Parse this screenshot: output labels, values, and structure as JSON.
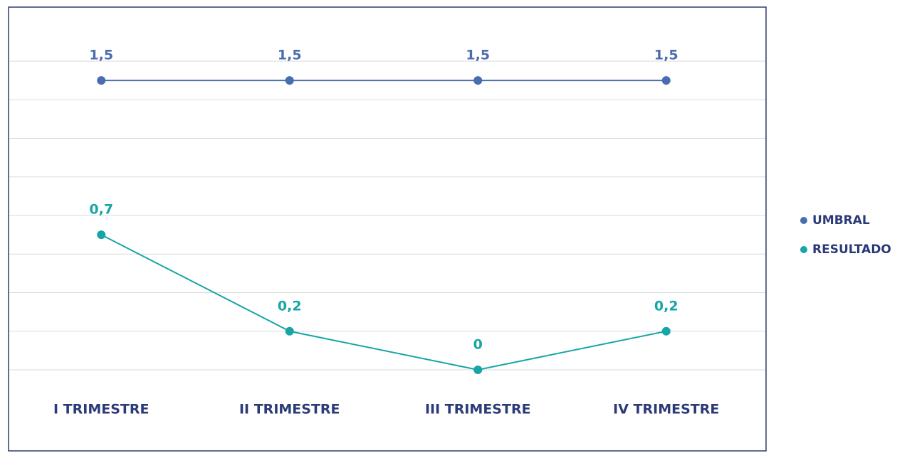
{
  "chart_data": {
    "type": "line",
    "categories": [
      "I TRIMESTRE",
      "II TRIMESTRE",
      "III TRIMESTRE",
      "IV TRIMESTRE"
    ],
    "series": [
      {
        "name": "UMBRAL",
        "color": "#4a6db0",
        "values": [
          1.5,
          1.5,
          1.5,
          1.5
        ],
        "value_labels": [
          "1,5",
          "1,5",
          "1,5",
          "1,5"
        ]
      },
      {
        "name": "RESULTADO",
        "color": "#17a5a5",
        "values": [
          0.7,
          0.2,
          0,
          0.2
        ],
        "value_labels": [
          "0,7",
          "0,2",
          "0",
          "0,2"
        ]
      }
    ],
    "ylim": [
      0,
      1.6
    ],
    "yticks": [
      0,
      0.2,
      0.4,
      0.6,
      0.8,
      1,
      1.2,
      1.4,
      1.6
    ],
    "grid": true,
    "legend": "right"
  }
}
